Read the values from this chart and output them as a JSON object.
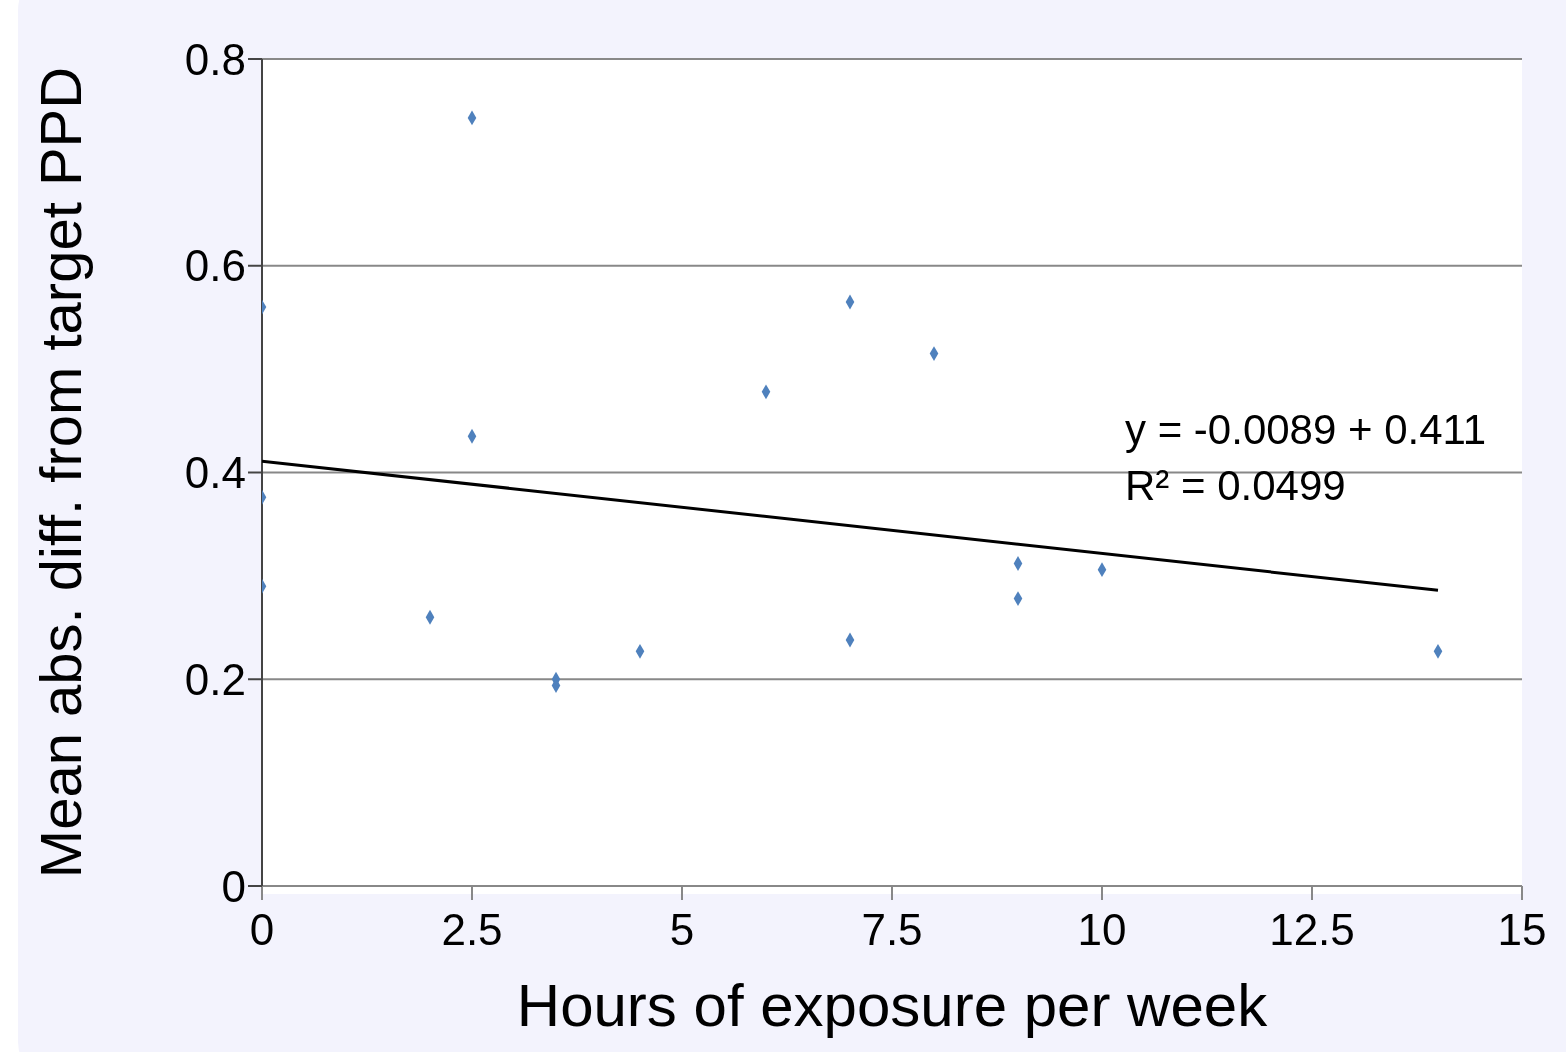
{
  "chart_data": {
    "type": "scatter",
    "xlabel": "Hours of exposure per week",
    "ylabel": "Mean abs. diff. from target PPD",
    "annotations": [
      "y = -0.0089 + 0.411",
      "R² = 0.0499"
    ],
    "series": [
      {
        "color": "#4f81bd",
        "x": [
          0,
          0,
          0,
          2,
          2.5,
          2.5,
          3.5,
          3.5,
          4.5,
          6,
          7,
          7,
          8,
          9,
          9,
          10,
          14
        ],
        "values": [
          0.56,
          0.376,
          0.29,
          0.26,
          0.743,
          0.435,
          0.2,
          0.194,
          0.227,
          0.478,
          0.565,
          0.238,
          0.515,
          0.312,
          0.278,
          0.306,
          0.227
        ]
      },
      {
        "type": "line",
        "marker": "none",
        "color": "#000000",
        "x": [
          0,
          14
        ],
        "values": [
          0.411,
          0.286
        ]
      }
    ],
    "marker": "diamond",
    "xlim": [
      0,
      15
    ],
    "xticks": [
      0,
      2.5,
      5,
      7.5,
      10,
      12.5,
      15
    ],
    "ylim": [
      0,
      0.8
    ],
    "yticks": [
      0,
      0.2,
      0.4,
      0.6,
      0.8
    ],
    "grid": "y"
  }
}
